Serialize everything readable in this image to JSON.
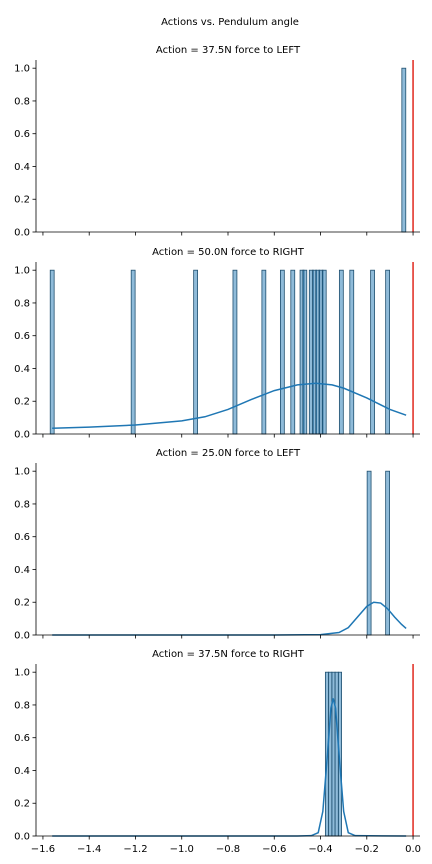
{
  "figure": {
    "suptitle": "Actions vs. Pendulum angle",
    "colors": {
      "bar_fill": "#1f77b4",
      "bar_fill_opacity": 0.5,
      "bar_edge": "#1f4f6f",
      "kde_line": "#1f77b4",
      "reference_line": "#e0281e",
      "axis": "#000000"
    }
  },
  "chart_data": [
    {
      "type": "bar",
      "title": "Action = 37.5N force to LEFT",
      "xlabel": "",
      "ylabel": "",
      "xlim": [
        -1.63,
        0.03
      ],
      "ylim": [
        0,
        1.05
      ],
      "xticks": [
        -1.6,
        -1.4,
        -1.2,
        -1.0,
        -0.8,
        -0.6,
        -0.4,
        -0.2,
        0.0
      ],
      "xtick_labels": [
        "−1.6",
        "−1.4",
        "−1.2",
        "−1.0",
        "−0.8",
        "−0.6",
        "−0.4",
        "−0.2",
        "0.0"
      ],
      "show_xtick_labels": false,
      "yticks": [
        0.0,
        0.2,
        0.4,
        0.6,
        0.8,
        1.0
      ],
      "ytick_labels": [
        "0.0",
        "0.2",
        "0.4",
        "0.6",
        "0.8",
        "1.0"
      ],
      "bar_width": 0.017,
      "bars": [
        {
          "x": -0.04,
          "value": 1.0
        }
      ],
      "kde": [],
      "reference_line_x": 0.0,
      "grid": false
    },
    {
      "type": "bar",
      "title": "Action = 50.0N force to RIGHT",
      "xlabel": "",
      "ylabel": "",
      "xlim": [
        -1.63,
        0.03
      ],
      "ylim": [
        0,
        1.05
      ],
      "xticks": [
        -1.6,
        -1.4,
        -1.2,
        -1.0,
        -0.8,
        -0.6,
        -0.4,
        -0.2,
        0.0
      ],
      "xtick_labels": [
        "−1.6",
        "−1.4",
        "−1.2",
        "−1.0",
        "−0.8",
        "−0.6",
        "−0.4",
        "−0.2",
        "0.0"
      ],
      "show_xtick_labels": false,
      "yticks": [
        0.0,
        0.2,
        0.4,
        0.6,
        0.8,
        1.0
      ],
      "ytick_labels": [
        "0.0",
        "0.2",
        "0.4",
        "0.6",
        "0.8",
        "1.0"
      ],
      "bar_width": 0.017,
      "bars": [
        {
          "x": -1.56,
          "value": 1.0
        },
        {
          "x": -1.21,
          "value": 1.0
        },
        {
          "x": -0.94,
          "value": 1.0
        },
        {
          "x": -0.77,
          "value": 1.0
        },
        {
          "x": -0.645,
          "value": 1.0
        },
        {
          "x": -0.565,
          "value": 1.0
        },
        {
          "x": -0.52,
          "value": 1.0
        },
        {
          "x": -0.48,
          "value": 1.0
        },
        {
          "x": -0.468,
          "value": 1.0
        },
        {
          "x": -0.44,
          "value": 1.0
        },
        {
          "x": -0.426,
          "value": 1.0
        },
        {
          "x": -0.412,
          "value": 1.0
        },
        {
          "x": -0.398,
          "value": 1.0
        },
        {
          "x": -0.384,
          "value": 1.0
        },
        {
          "x": -0.31,
          "value": 1.0
        },
        {
          "x": -0.265,
          "value": 1.0
        },
        {
          "x": -0.175,
          "value": 1.0
        },
        {
          "x": -0.11,
          "value": 1.0
        }
      ],
      "kde": [
        [
          -1.56,
          0.035
        ],
        [
          -1.4,
          0.042
        ],
        [
          -1.2,
          0.055
        ],
        [
          -1.0,
          0.08
        ],
        [
          -0.9,
          0.105
        ],
        [
          -0.8,
          0.15
        ],
        [
          -0.7,
          0.21
        ],
        [
          -0.6,
          0.265
        ],
        [
          -0.5,
          0.3
        ],
        [
          -0.42,
          0.31
        ],
        [
          -0.35,
          0.3
        ],
        [
          -0.3,
          0.28
        ],
        [
          -0.2,
          0.22
        ],
        [
          -0.1,
          0.15
        ],
        [
          -0.03,
          0.115
        ]
      ],
      "reference_line_x": 0.0,
      "grid": false
    },
    {
      "type": "bar",
      "title": "Action = 25.0N force to LEFT",
      "xlabel": "",
      "ylabel": "",
      "xlim": [
        -1.63,
        0.03
      ],
      "ylim": [
        0,
        1.05
      ],
      "xticks": [
        -1.6,
        -1.4,
        -1.2,
        -1.0,
        -0.8,
        -0.6,
        -0.4,
        -0.2,
        0.0
      ],
      "xtick_labels": [
        "−1.6",
        "−1.4",
        "−1.2",
        "−1.0",
        "−0.8",
        "−0.6",
        "−0.4",
        "−0.2",
        "0.0"
      ],
      "show_xtick_labels": false,
      "yticks": [
        0.0,
        0.2,
        0.4,
        0.6,
        0.8,
        1.0
      ],
      "ytick_labels": [
        "0.0",
        "0.2",
        "0.4",
        "0.6",
        "0.8",
        "1.0"
      ],
      "bar_width": 0.017,
      "bars": [
        {
          "x": -0.19,
          "value": 1.0
        },
        {
          "x": -0.11,
          "value": 1.0
        }
      ],
      "kde": [
        [
          -1.56,
          0.0
        ],
        [
          -0.6,
          0.0
        ],
        [
          -0.4,
          0.002
        ],
        [
          -0.32,
          0.015
        ],
        [
          -0.28,
          0.045
        ],
        [
          -0.24,
          0.11
        ],
        [
          -0.2,
          0.175
        ],
        [
          -0.17,
          0.2
        ],
        [
          -0.14,
          0.195
        ],
        [
          -0.11,
          0.16
        ],
        [
          -0.08,
          0.11
        ],
        [
          -0.05,
          0.065
        ],
        [
          -0.03,
          0.04
        ]
      ],
      "reference_line_x": null,
      "grid": false
    },
    {
      "type": "bar",
      "title": "Action = 37.5N force to RIGHT",
      "xlabel": "",
      "ylabel": "",
      "xlim": [
        -1.63,
        0.03
      ],
      "ylim": [
        0,
        1.05
      ],
      "xticks": [
        -1.6,
        -1.4,
        -1.2,
        -1.0,
        -0.8,
        -0.6,
        -0.4,
        -0.2,
        0.0
      ],
      "xtick_labels": [
        "−1.6",
        "−1.4",
        "−1.2",
        "−1.0",
        "−0.8",
        "−0.6",
        "−0.4",
        "−0.2",
        "0.0"
      ],
      "show_xtick_labels": true,
      "yticks": [
        0.0,
        0.2,
        0.4,
        0.6,
        0.8,
        1.0
      ],
      "ytick_labels": [
        "0.0",
        "0.2",
        "0.4",
        "0.6",
        "0.8",
        "1.0"
      ],
      "bar_width": 0.014,
      "bars": [
        {
          "x": -0.372,
          "value": 1.0
        },
        {
          "x": -0.358,
          "value": 1.0
        },
        {
          "x": -0.344,
          "value": 1.0
        },
        {
          "x": -0.33,
          "value": 1.0
        },
        {
          "x": -0.316,
          "value": 1.0
        }
      ],
      "kde": [
        [
          -1.56,
          0.0
        ],
        [
          -0.5,
          0.0
        ],
        [
          -0.44,
          0.002
        ],
        [
          -0.41,
          0.02
        ],
        [
          -0.39,
          0.15
        ],
        [
          -0.37,
          0.5
        ],
        [
          -0.355,
          0.78
        ],
        [
          -0.345,
          0.84
        ],
        [
          -0.335,
          0.78
        ],
        [
          -0.32,
          0.5
        ],
        [
          -0.3,
          0.15
        ],
        [
          -0.28,
          0.02
        ],
        [
          -0.25,
          0.002
        ],
        [
          -0.03,
          0.0
        ]
      ],
      "reference_line_x": 0.0,
      "grid": false
    }
  ]
}
